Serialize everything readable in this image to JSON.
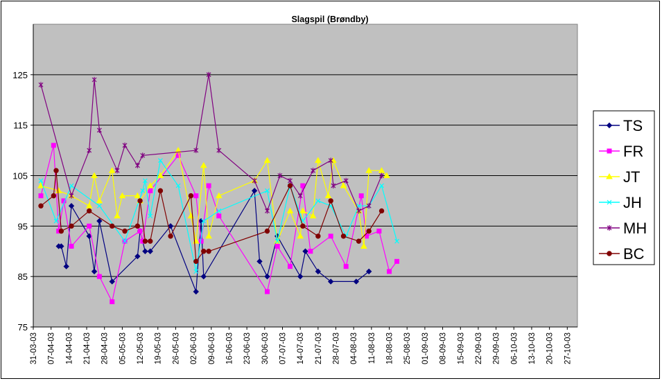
{
  "chart_data": {
    "type": "line",
    "title": "Slagspil (Brøndby)",
    "xlabel": "",
    "ylabel": "",
    "ylim": [
      75,
      135
    ],
    "yticks": [
      75,
      85,
      95,
      105,
      115,
      125
    ],
    "x_tick_labels": [
      "31-03-03",
      "07-04-03",
      "14-04-03",
      "21-04-03",
      "28-04-03",
      "05-05-03",
      "12-05-03",
      "19-05-03",
      "26-05-03",
      "02-06-03",
      "09-06-03",
      "16-06-03",
      "23-06-03",
      "30-06-03",
      "07-07-03",
      "14-07-03",
      "21-07-03",
      "28-07-03",
      "04-08-03",
      "11-08-03",
      "18-08-03",
      "25-08-03",
      "01-09-03",
      "08-09-03",
      "15-09-03",
      "22-09-03",
      "29-09-03",
      "06-10-03",
      "13-10-03",
      "20-10-03",
      "27-10-03"
    ],
    "x_start": "2003-03-31",
    "x_end": "2003-10-31",
    "grid": true,
    "legend_position": "right",
    "plot_background": "#c0c0c0",
    "series": [
      {
        "name": "TS",
        "color": "#000080",
        "marker": "diamond",
        "points": [
          [
            "2003-04-10",
            91
          ],
          [
            "2003-04-11",
            91
          ],
          [
            "2003-04-13",
            87
          ],
          [
            "2003-04-15",
            99
          ],
          [
            "2003-04-22",
            93
          ],
          [
            "2003-04-24",
            86
          ],
          [
            "2003-04-26",
            96
          ],
          [
            "2003-05-01",
            84
          ],
          [
            "2003-05-11",
            89
          ],
          [
            "2003-05-12",
            94
          ],
          [
            "2003-05-14",
            90
          ],
          [
            "2003-05-16",
            90
          ],
          [
            "2003-05-24",
            95
          ],
          [
            "2003-06-03",
            82
          ],
          [
            "2003-06-05",
            96
          ],
          [
            "2003-06-06",
            85
          ],
          [
            "2003-06-26",
            102
          ],
          [
            "2003-06-28",
            88
          ],
          [
            "2003-07-01",
            85
          ],
          [
            "2003-07-05",
            93
          ],
          [
            "2003-07-14",
            85
          ],
          [
            "2003-07-16",
            90
          ],
          [
            "2003-07-21",
            86
          ],
          [
            "2003-07-26",
            84
          ],
          [
            "2003-08-05",
            84
          ],
          [
            "2003-08-10",
            86
          ]
        ]
      },
      {
        "name": "FR",
        "color": "#ff00ff",
        "marker": "square",
        "points": [
          [
            "2003-04-03",
            101
          ],
          [
            "2003-04-08",
            111
          ],
          [
            "2003-04-10",
            94
          ],
          [
            "2003-04-12",
            100
          ],
          [
            "2003-04-15",
            91
          ],
          [
            "2003-04-22",
            95
          ],
          [
            "2003-04-26",
            85
          ],
          [
            "2003-05-01",
            80
          ],
          [
            "2003-05-06",
            92
          ],
          [
            "2003-05-12",
            94
          ],
          [
            "2003-05-13",
            92
          ],
          [
            "2003-05-16",
            102
          ],
          [
            "2003-05-27",
            109
          ],
          [
            "2003-06-03",
            101
          ],
          [
            "2003-06-05",
            92
          ],
          [
            "2003-06-08",
            103
          ],
          [
            "2003-06-12",
            97
          ],
          [
            "2003-07-01",
            82
          ],
          [
            "2003-07-05",
            91
          ],
          [
            "2003-07-10",
            87
          ],
          [
            "2003-07-15",
            103
          ],
          [
            "2003-07-18",
            90
          ],
          [
            "2003-07-26",
            93
          ],
          [
            "2003-08-01",
            87
          ],
          [
            "2003-08-07",
            101
          ],
          [
            "2003-08-09",
            93
          ],
          [
            "2003-08-14",
            94
          ],
          [
            "2003-08-18",
            86
          ],
          [
            "2003-08-21",
            88
          ]
        ]
      },
      {
        "name": "JT",
        "color": "#ffff00",
        "marker": "triangle",
        "points": [
          [
            "2003-04-03",
            103
          ],
          [
            "2003-04-10",
            102
          ],
          [
            "2003-04-15",
            101
          ],
          [
            "2003-04-22",
            99
          ],
          [
            "2003-04-24",
            105
          ],
          [
            "2003-04-26",
            100
          ],
          [
            "2003-05-01",
            106
          ],
          [
            "2003-05-03",
            97
          ],
          [
            "2003-05-05",
            101
          ],
          [
            "2003-05-11",
            101
          ],
          [
            "2003-05-12",
            100
          ],
          [
            "2003-05-16",
            103
          ],
          [
            "2003-05-20",
            105
          ],
          [
            "2003-05-27",
            110
          ],
          [
            "2003-06-01",
            97
          ],
          [
            "2003-06-03",
            92
          ],
          [
            "2003-06-06",
            107
          ],
          [
            "2003-06-08",
            93
          ],
          [
            "2003-06-12",
            101
          ],
          [
            "2003-06-26",
            104
          ],
          [
            "2003-07-01",
            108
          ],
          [
            "2003-07-05",
            92
          ],
          [
            "2003-07-10",
            98
          ],
          [
            "2003-07-14",
            93
          ],
          [
            "2003-07-15",
            98
          ],
          [
            "2003-07-19",
            97
          ],
          [
            "2003-07-21",
            108
          ],
          [
            "2003-07-25",
            101
          ],
          [
            "2003-07-27",
            108
          ],
          [
            "2003-07-31",
            103
          ],
          [
            "2003-08-06",
            98
          ],
          [
            "2003-08-08",
            91
          ],
          [
            "2003-08-10",
            106
          ],
          [
            "2003-08-15",
            106
          ],
          [
            "2003-08-17",
            105
          ]
        ]
      },
      {
        "name": "JH",
        "color": "#00ffff",
        "marker": "cross",
        "points": [
          [
            "2003-04-03",
            104
          ],
          [
            "2003-04-09",
            96
          ],
          [
            "2003-04-15",
            103
          ],
          [
            "2003-04-26",
            99
          ],
          [
            "2003-05-06",
            92
          ],
          [
            "2003-05-13",
            102
          ],
          [
            "2003-05-14",
            104
          ],
          [
            "2003-05-16",
            97
          ],
          [
            "2003-05-20",
            108
          ],
          [
            "2003-05-27",
            103
          ],
          [
            "2003-06-03",
            86
          ],
          [
            "2003-06-06",
            96
          ],
          [
            "2003-06-12",
            98
          ],
          [
            "2003-07-01",
            102
          ],
          [
            "2003-07-05",
            92
          ],
          [
            "2003-07-10",
            103
          ],
          [
            "2003-07-15",
            96
          ],
          [
            "2003-07-21",
            100
          ],
          [
            "2003-07-26",
            99
          ],
          [
            "2003-08-01",
            93
          ],
          [
            "2003-08-06",
            99
          ],
          [
            "2003-08-10",
            99
          ],
          [
            "2003-08-15",
            103
          ],
          [
            "2003-08-21",
            92
          ]
        ]
      },
      {
        "name": "MH",
        "color": "#800080",
        "marker": "star",
        "points": [
          [
            "2003-04-03",
            123
          ],
          [
            "2003-04-15",
            101
          ],
          [
            "2003-04-22",
            110
          ],
          [
            "2003-04-24",
            124
          ],
          [
            "2003-04-26",
            114
          ],
          [
            "2003-05-03",
            106
          ],
          [
            "2003-05-06",
            111
          ],
          [
            "2003-05-11",
            107
          ],
          [
            "2003-05-13",
            109
          ],
          [
            "2003-06-03",
            110
          ],
          [
            "2003-06-08",
            125
          ],
          [
            "2003-06-12",
            110
          ],
          [
            "2003-06-26",
            104
          ],
          [
            "2003-07-01",
            98
          ],
          [
            "2003-07-06",
            105
          ],
          [
            "2003-07-10",
            104
          ],
          [
            "2003-07-14",
            101
          ],
          [
            "2003-07-19",
            106
          ],
          [
            "2003-07-26",
            108
          ],
          [
            "2003-07-27",
            103
          ],
          [
            "2003-08-01",
            104
          ],
          [
            "2003-08-06",
            98
          ],
          [
            "2003-08-10",
            99
          ],
          [
            "2003-08-15",
            105
          ]
        ]
      },
      {
        "name": "BC",
        "color": "#800000",
        "marker": "circle",
        "points": [
          [
            "2003-04-03",
            99
          ],
          [
            "2003-04-08",
            101
          ],
          [
            "2003-04-09",
            106
          ],
          [
            "2003-04-11",
            94
          ],
          [
            "2003-04-15",
            95
          ],
          [
            "2003-04-22",
            98
          ],
          [
            "2003-05-01",
            95
          ],
          [
            "2003-05-06",
            94
          ],
          [
            "2003-05-11",
            95
          ],
          [
            "2003-05-12",
            100
          ],
          [
            "2003-05-14",
            92
          ],
          [
            "2003-05-16",
            92
          ],
          [
            "2003-05-20",
            102
          ],
          [
            "2003-05-24",
            93
          ],
          [
            "2003-06-01",
            101
          ],
          [
            "2003-06-03",
            88
          ],
          [
            "2003-06-06",
            90
          ],
          [
            "2003-06-08",
            90
          ],
          [
            "2003-07-01",
            94
          ],
          [
            "2003-07-10",
            103
          ],
          [
            "2003-07-15",
            95
          ],
          [
            "2003-07-21",
            93
          ],
          [
            "2003-07-26",
            100
          ],
          [
            "2003-07-31",
            93
          ],
          [
            "2003-08-06",
            92
          ],
          [
            "2003-08-10",
            94
          ],
          [
            "2003-08-15",
            98
          ]
        ]
      }
    ]
  }
}
